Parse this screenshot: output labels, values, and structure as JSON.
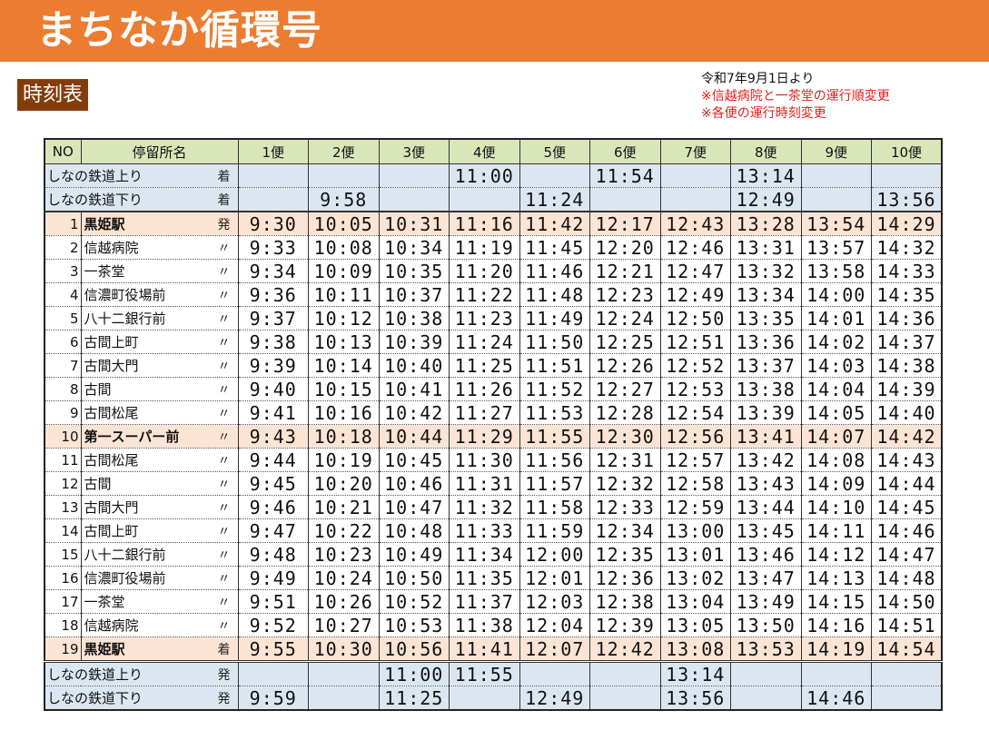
{
  "header": {
    "title": "まちなか循環号",
    "section_label": "時刻表",
    "brand_color": "#ec7c30"
  },
  "notes": {
    "effective_date": "令和7年9月1日より",
    "changes": [
      "※信越病院と一茶堂の運行順変更",
      "※各便の運行時刻変更"
    ]
  },
  "table": {
    "headers": {
      "no": "NO",
      "stop": "停留所名",
      "trips": [
        "1便",
        "2便",
        "3便",
        "4便",
        "5便",
        "6便",
        "7便",
        "8便",
        "9便",
        "10便"
      ]
    },
    "rail_arrivals": [
      {
        "name": "しなの鉄道上り",
        "mark": "着",
        "times": [
          "",
          "",
          "",
          "11:00",
          "",
          "11:54",
          "",
          "13:14",
          "",
          ""
        ]
      },
      {
        "name": "しなの鉄道下り",
        "mark": "着",
        "times": [
          "",
          "9:58",
          "",
          "",
          "11:24",
          "",
          "",
          "12:49",
          "",
          "13:56"
        ]
      }
    ],
    "stops": [
      {
        "no": "1",
        "name": "黒姫駅",
        "mark": "発",
        "highlight": true,
        "times": [
          "9:30",
          "10:05",
          "10:31",
          "11:16",
          "11:42",
          "12:17",
          "12:43",
          "13:28",
          "13:54",
          "14:29"
        ]
      },
      {
        "no": "2",
        "name": "信越病院",
        "mark": "〃",
        "times": [
          "9:33",
          "10:08",
          "10:34",
          "11:19",
          "11:45",
          "12:20",
          "12:46",
          "13:31",
          "13:57",
          "14:32"
        ]
      },
      {
        "no": "3",
        "name": "一茶堂",
        "mark": "〃",
        "times": [
          "9:34",
          "10:09",
          "10:35",
          "11:20",
          "11:46",
          "12:21",
          "12:47",
          "13:32",
          "13:58",
          "14:33"
        ]
      },
      {
        "no": "4",
        "name": "信濃町役場前",
        "mark": "〃",
        "times": [
          "9:36",
          "10:11",
          "10:37",
          "11:22",
          "11:48",
          "12:23",
          "12:49",
          "13:34",
          "14:00",
          "14:35"
        ]
      },
      {
        "no": "5",
        "name": "八十二銀行前",
        "mark": "〃",
        "times": [
          "9:37",
          "10:12",
          "10:38",
          "11:23",
          "11:49",
          "12:24",
          "12:50",
          "13:35",
          "14:01",
          "14:36"
        ]
      },
      {
        "no": "6",
        "name": "古間上町",
        "mark": "〃",
        "times": [
          "9:38",
          "10:13",
          "10:39",
          "11:24",
          "11:50",
          "12:25",
          "12:51",
          "13:36",
          "14:02",
          "14:37"
        ]
      },
      {
        "no": "7",
        "name": "古間大門",
        "mark": "〃",
        "times": [
          "9:39",
          "10:14",
          "10:40",
          "11:25",
          "11:51",
          "12:26",
          "12:52",
          "13:37",
          "14:03",
          "14:38"
        ]
      },
      {
        "no": "8",
        "name": "古間",
        "mark": "〃",
        "times": [
          "9:40",
          "10:15",
          "10:41",
          "11:26",
          "11:52",
          "12:27",
          "12:53",
          "13:38",
          "14:04",
          "14:39"
        ]
      },
      {
        "no": "9",
        "name": "古間松尾",
        "mark": "〃",
        "times": [
          "9:41",
          "10:16",
          "10:42",
          "11:27",
          "11:53",
          "12:28",
          "12:54",
          "13:39",
          "14:05",
          "14:40"
        ]
      },
      {
        "no": "10",
        "name": "第一スーパー前",
        "mark": "〃",
        "highlight": true,
        "times": [
          "9:43",
          "10:18",
          "10:44",
          "11:29",
          "11:55",
          "12:30",
          "12:56",
          "13:41",
          "14:07",
          "14:42"
        ]
      },
      {
        "no": "11",
        "name": "古間松尾",
        "mark": "〃",
        "times": [
          "9:44",
          "10:19",
          "10:45",
          "11:30",
          "11:56",
          "12:31",
          "12:57",
          "13:42",
          "14:08",
          "14:43"
        ]
      },
      {
        "no": "12",
        "name": "古間",
        "mark": "〃",
        "times": [
          "9:45",
          "10:20",
          "10:46",
          "11:31",
          "11:57",
          "12:32",
          "12:58",
          "13:43",
          "14:09",
          "14:44"
        ]
      },
      {
        "no": "13",
        "name": "古間大門",
        "mark": "〃",
        "times": [
          "9:46",
          "10:21",
          "10:47",
          "11:32",
          "11:58",
          "12:33",
          "12:59",
          "13:44",
          "14:10",
          "14:45"
        ]
      },
      {
        "no": "14",
        "name": "古間上町",
        "mark": "〃",
        "times": [
          "9:47",
          "10:22",
          "10:48",
          "11:33",
          "11:59",
          "12:34",
          "13:00",
          "13:45",
          "14:11",
          "14:46"
        ]
      },
      {
        "no": "15",
        "name": "八十二銀行前",
        "mark": "〃",
        "times": [
          "9:48",
          "10:23",
          "10:49",
          "11:34",
          "12:00",
          "12:35",
          "13:01",
          "13:46",
          "14:12",
          "14:47"
        ]
      },
      {
        "no": "16",
        "name": "信濃町役場前",
        "mark": "〃",
        "times": [
          "9:49",
          "10:24",
          "10:50",
          "11:35",
          "12:01",
          "12:36",
          "13:02",
          "13:47",
          "14:13",
          "14:48"
        ]
      },
      {
        "no": "17",
        "name": "一茶堂",
        "mark": "〃",
        "times": [
          "9:51",
          "10:26",
          "10:52",
          "11:37",
          "12:03",
          "12:38",
          "13:04",
          "13:49",
          "14:15",
          "14:50"
        ]
      },
      {
        "no": "18",
        "name": "信越病院",
        "mark": "〃",
        "times": [
          "9:52",
          "10:27",
          "10:53",
          "11:38",
          "12:04",
          "12:39",
          "13:05",
          "13:50",
          "14:16",
          "14:51"
        ]
      },
      {
        "no": "19",
        "name": "黒姫駅",
        "mark": "着",
        "highlight": true,
        "times": [
          "9:55",
          "10:30",
          "10:56",
          "11:41",
          "12:07",
          "12:42",
          "13:08",
          "13:53",
          "14:19",
          "14:54"
        ]
      }
    ],
    "rail_departures": [
      {
        "name": "しなの鉄道上り",
        "mark": "発",
        "times": [
          "",
          "",
          "11:00",
          "11:55",
          "",
          "",
          "13:14",
          "",
          "",
          ""
        ]
      },
      {
        "name": "しなの鉄道下り",
        "mark": "発",
        "times": [
          "9:59",
          "",
          "11:25",
          "",
          "12:49",
          "",
          "13:56",
          "",
          "14:46",
          ""
        ]
      }
    ]
  }
}
